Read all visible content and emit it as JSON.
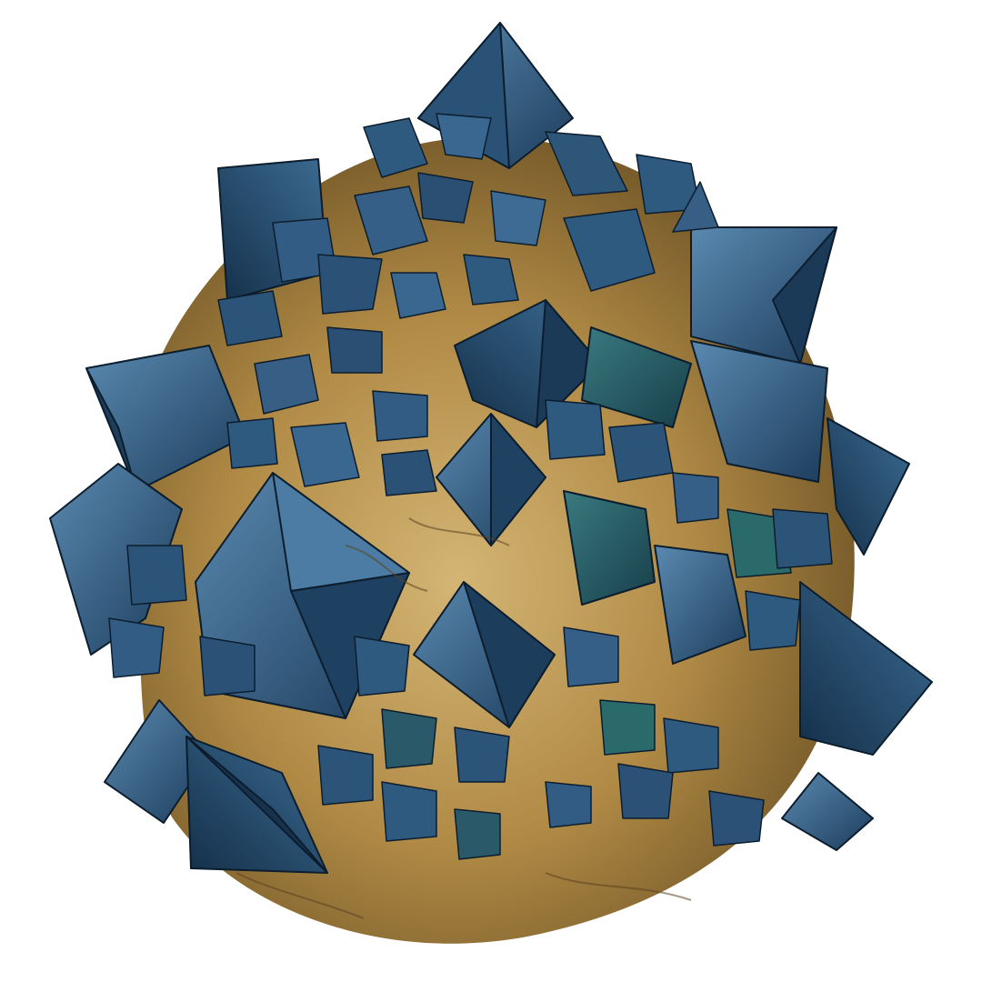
{
  "scene": {
    "subject": "crystal-geode-render",
    "background": "#ffffff",
    "colors": {
      "rock_light": "#c9a866",
      "rock_mid": "#a8843f",
      "rock_dark": "#6f5426",
      "crystal_light": "#4f7fa6",
      "crystal_mid": "#2c5478",
      "crystal_dark": "#16324d",
      "crystal_teal": "#2a6a6a",
      "edge": "#0c1d2e"
    }
  }
}
